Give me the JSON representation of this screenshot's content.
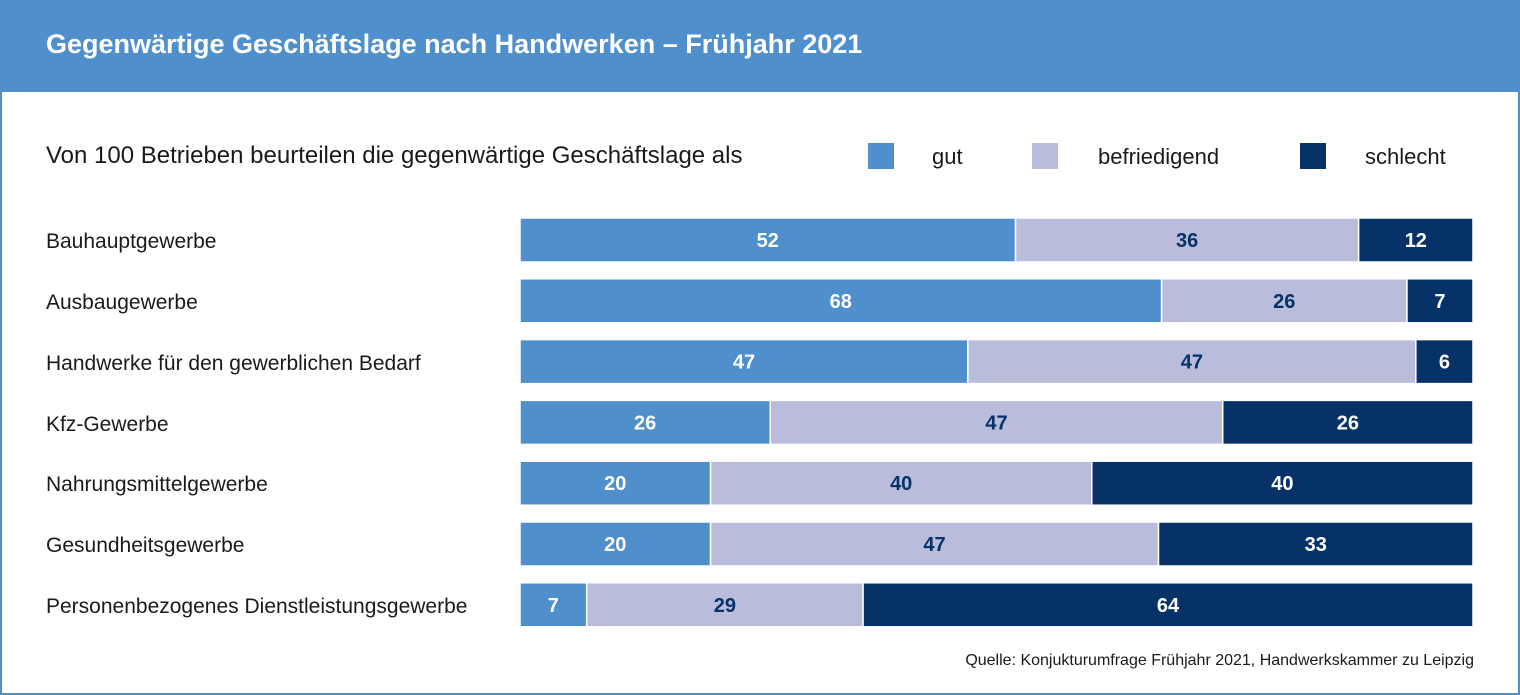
{
  "title": "Gegenwärtige Geschäftslage nach Handwerken – Frühjahr 2021",
  "source": "Quelle: Konjukturumfrage Frühjahr 2021, Handwerkskammer zu Leipzig",
  "colors": {
    "header": "#4f8fcc",
    "gut": "#4f8fcc",
    "befriedigend": "#b9bcdb",
    "schlecht": "#063268",
    "label_light": "#ffffff",
    "label_dark": "#063268"
  },
  "chart_data": {
    "type": "bar",
    "orientation": "horizontal",
    "stacked": true,
    "title": "Von 100 Betrieben beurteilen die gegenwärtige Geschäftslage als",
    "legend_position": "top-right",
    "categories": [
      "Bauhauptgewerbe",
      "Ausbaugewerbe",
      "Handwerke für den gewerblichen Bedarf",
      "Kfz-Gewerbe",
      "Nahrungsmittelgewerbe",
      "Gesundheitsgewerbe",
      "Personenbezogenes Dienstleistungsgewerbe"
    ],
    "series": [
      {
        "name": "gut",
        "key": "gut",
        "values": [
          52,
          68,
          47,
          26,
          20,
          20,
          7
        ]
      },
      {
        "name": "befriedigend",
        "key": "befriedigend",
        "values": [
          36,
          26,
          47,
          47,
          40,
          47,
          29
        ]
      },
      {
        "name": "schlecht",
        "key": "schlecht",
        "values": [
          12,
          7,
          6,
          26,
          40,
          33,
          64
        ]
      }
    ],
    "xlim": [
      0,
      100
    ]
  }
}
